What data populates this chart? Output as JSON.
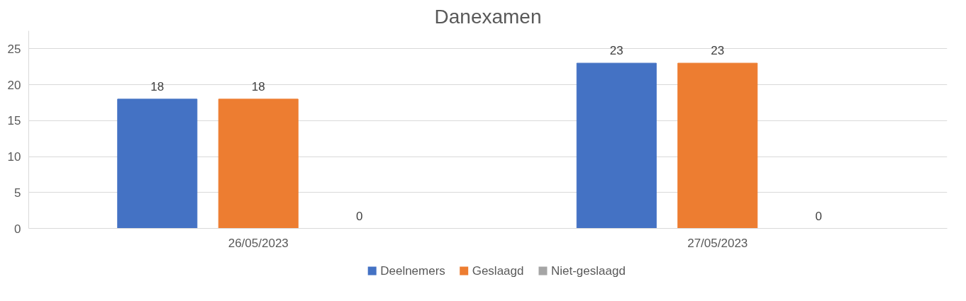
{
  "chart_data": {
    "type": "bar",
    "title": "Danexamen",
    "categories": [
      "26/05/2023",
      "27/05/2023"
    ],
    "series": [
      {
        "name": "Deelnemers",
        "color": "#4472c4",
        "values": [
          18,
          23
        ]
      },
      {
        "name": "Geslaagd",
        "color": "#ed7d31",
        "values": [
          18,
          23
        ]
      },
      {
        "name": "Niet-geslaagd",
        "color": "#a5a5a5",
        "values": [
          0,
          0
        ]
      }
    ],
    "ylim": [
      0,
      27.5
    ],
    "yticks": [
      0,
      5,
      10,
      15,
      20,
      25
    ],
    "grid": "y",
    "legend": "bottom",
    "data_labels": true
  }
}
